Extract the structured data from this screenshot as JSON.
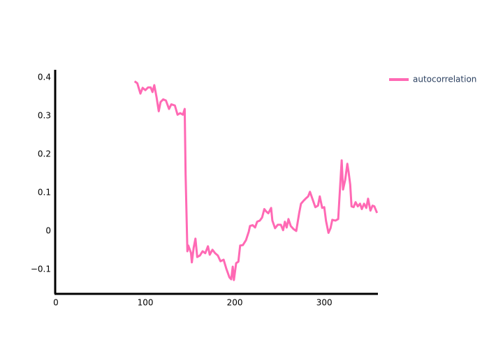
{
  "chart_data": {
    "type": "line",
    "x": [
      88,
      91,
      94.5,
      97,
      100,
      103,
      106,
      108,
      110,
      112.5,
      115,
      117,
      120,
      123,
      126.5,
      129,
      133,
      136,
      139,
      142,
      144,
      145,
      147,
      148,
      151,
      152,
      154,
      156,
      158,
      161,
      164,
      167,
      170,
      172,
      175,
      178,
      181,
      184,
      187.5,
      190.6,
      194,
      196,
      197.7,
      199,
      201.5,
      204,
      206,
      209,
      212.5,
      215.6,
      217,
      220,
      222.7,
      225,
      228,
      230.5,
      233,
      235,
      237.5,
      240.6,
      242,
      245,
      248,
      251.5,
      254,
      256,
      258,
      260,
      262.5,
      265.6,
      268.7,
      272,
      274,
      277,
      280,
      282,
      284,
      286.7,
      290,
      293,
      295,
      297.7,
      300,
      302,
      304.7,
      307,
      309,
      312.5,
      315.6,
      318,
      319.5,
      321,
      323.4,
      325.8,
      327.3,
      329,
      330.5,
      332.8,
      335,
      337.5,
      340,
      342,
      344.5,
      347,
      349,
      351.6,
      354,
      356,
      359
    ],
    "series": [
      {
        "name": "autocorrelation",
        "color": "#ff69b4",
        "values": [
          0.39,
          0.385,
          0.358,
          0.373,
          0.367,
          0.374,
          0.374,
          0.362,
          0.38,
          0.349,
          0.312,
          0.336,
          0.343,
          0.34,
          0.318,
          0.33,
          0.327,
          0.303,
          0.307,
          0.303,
          0.318,
          0.148,
          -0.053,
          -0.038,
          -0.057,
          -0.082,
          -0.044,
          -0.02,
          -0.068,
          -0.064,
          -0.053,
          -0.058,
          -0.04,
          -0.062,
          -0.049,
          -0.058,
          -0.064,
          -0.079,
          -0.075,
          -0.099,
          -0.121,
          -0.126,
          -0.093,
          -0.128,
          -0.084,
          -0.08,
          -0.038,
          -0.037,
          -0.024,
          -0.002,
          0.013,
          0.015,
          0.009,
          0.024,
          0.027,
          0.035,
          0.057,
          0.051,
          0.046,
          0.06,
          0.027,
          0.007,
          0.016,
          0.016,
          0.002,
          0.024,
          0.009,
          0.031,
          0.013,
          0.005,
          0,
          0.047,
          0.071,
          0.079,
          0.086,
          0.09,
          0.102,
          0.084,
          0.062,
          0.066,
          0.09,
          0.06,
          0.062,
          0.026,
          -0.005,
          0.007,
          0.029,
          0.027,
          0.031,
          0.126,
          0.184,
          0.108,
          0.133,
          0.175,
          0.152,
          0.121,
          0.064,
          0.062,
          0.075,
          0.064,
          0.071,
          0.057,
          0.071,
          0.06,
          0.084,
          0.053,
          0.066,
          0.064,
          0.047
        ]
      }
    ],
    "xlim": [
      0,
      360
    ],
    "xticks": [
      0,
      100,
      200,
      300
    ],
    "ylim": [
      -0.164,
      0.42
    ],
    "yticks": [
      {
        "value": -0.1,
        "label": "−0.1"
      },
      0,
      0.1,
      0.2,
      0.3,
      0.4
    ],
    "grid": false,
    "legend": "top-right"
  }
}
